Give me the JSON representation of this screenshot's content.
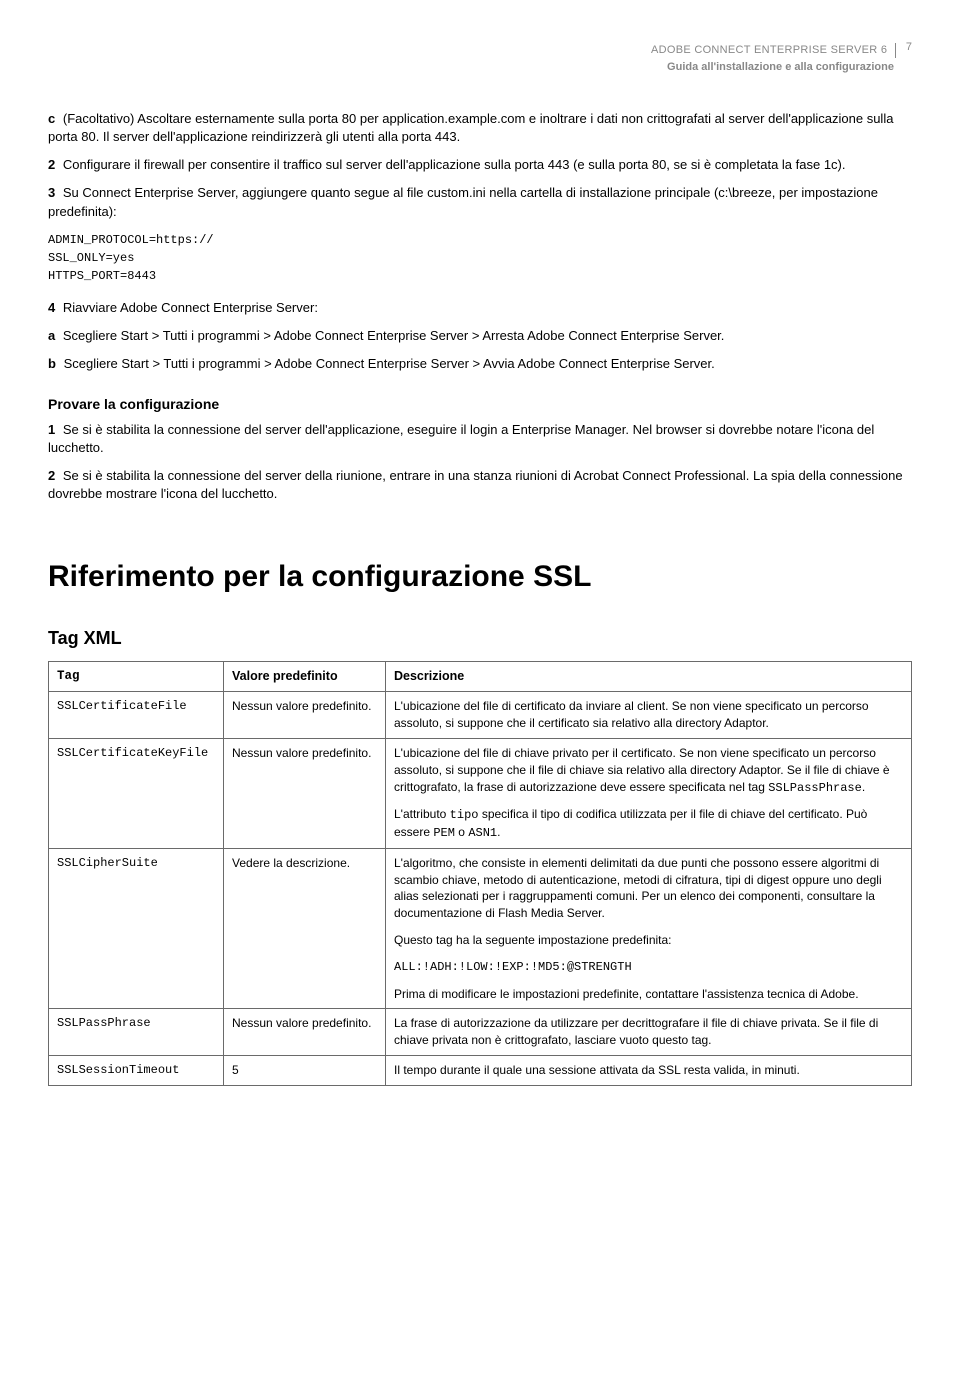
{
  "header": {
    "line1": "ADOBE CONNECT ENTERPRISE SERVER 6",
    "pagenum": "7",
    "line2": "Guida all'installazione e alla configurazione"
  },
  "body": {
    "p1_letter": "c",
    "p1": "(Facoltativo) Ascoltare esternamente sulla porta 80 per application.example.com e inoltrare i dati non crittografati al server dell'applicazione sulla porta 80. Il server dell'applicazione reindirizzerà gli utenti alla porta 443.",
    "p2_num": "2",
    "p2": "Configurare il firewall per consentire il traffico sul server dell'applicazione sulla porta 443 (e sulla porta 80, se si è completata la fase 1c).",
    "p3_num": "3",
    "p3": "Su Connect Enterprise Server, aggiungere quanto segue al file custom.ini nella cartella di installazione principale (c:\\breeze, per impostazione predefinita):",
    "code": "ADMIN_PROTOCOL=https://\nSSL_ONLY=yes\nHTTPS_PORT=8443",
    "p4_num": "4",
    "p4": "Riavviare Adobe Connect Enterprise Server:",
    "p4a_letter": "a",
    "p4a": "Scegliere Start > Tutti i programmi > Adobe Connect Enterprise Server > Arresta Adobe Connect Enterprise Server.",
    "p4b_letter": "b",
    "p4b": "Scegliere Start > Tutti i programmi > Adobe Connect Enterprise Server > Avvia Adobe Connect Enterprise Server.",
    "sec_heading": "Provare la configurazione",
    "s1_num": "1",
    "s1": "Se si è stabilita la connessione del server dell'applicazione, eseguire il login a Enterprise Manager. Nel browser si dovrebbe notare l'icona del lucchetto.",
    "s2_num": "2",
    "s2": "Se si è stabilita la connessione del server della riunione, entrare in una stanza riunioni di Acrobat Connect Professional. La spia della connessione dovrebbe mostrare l'icona del lucchetto.",
    "h1": "Riferimento per la configurazione SSL",
    "h2": "Tag XML"
  },
  "table": {
    "headers": {
      "c1": "Tag",
      "c2": "Valore predefinito",
      "c3": "Descrizione"
    },
    "rows": [
      {
        "tag": "SSLCertificateFile",
        "val": "Nessun valore predefinito.",
        "desc": "L'ubicazione del file di certificato da inviare al client. Se non viene specificato un percorso assoluto, si suppone che il certificato sia relativo alla directory Adaptor."
      },
      {
        "tag": "SSLCertificateKeyFile",
        "val": "Nessun valore predefinito.",
        "desc_p1a": "L'ubicazione del file di chiave privato per il certificato. Se non viene specificato un percorso assoluto, si suppone che il file di chiave sia relativo alla directory Adaptor. Se il file di chiave è crittografato, la frase di autorizzazione deve essere specificata nel tag ",
        "desc_p1_code": "SSLPassPhrase",
        "desc_p1b": ".",
        "desc_p2a": "L'attributo ",
        "desc_p2_code1": "tipo",
        "desc_p2b": " specifica il tipo di codifica utilizzata per il file di chiave del certificato. Può essere ",
        "desc_p2_code2": "PEM",
        "desc_p2c": " o ",
        "desc_p2_code3": "ASN1",
        "desc_p2d": "."
      },
      {
        "tag": "SSLCipherSuite",
        "val": "Vedere la descrizione.",
        "desc_p1": "L'algoritmo, che consiste in elementi delimitati da due punti che possono essere algoritmi di scambio chiave, metodo di autenticazione, metodi di cifratura, tipi di digest oppure uno degli alias selezionati per i raggruppamenti comuni. Per un elenco dei componenti, consultare la documentazione di Flash Media Server.",
        "desc_p2": "Questo tag ha la seguente impostazione predefinita:",
        "desc_code": "ALL:!ADH:!LOW:!EXP:!MD5:@STRENGTH",
        "desc_p3": "Prima di modificare le impostazioni predefinite, contattare l'assistenza tecnica di Adobe."
      },
      {
        "tag": "SSLPassPhrase",
        "val": "Nessun valore predefinito.",
        "desc": "La frase di autorizzazione da utilizzare per decrittografare il file di chiave privata. Se il file di chiave privata non è crittografato, lasciare vuoto questo tag."
      },
      {
        "tag": "SSLSessionTimeout",
        "val": "5",
        "desc": "Il tempo durante il quale una sessione attivata da SSL resta valida, in minuti."
      }
    ]
  }
}
